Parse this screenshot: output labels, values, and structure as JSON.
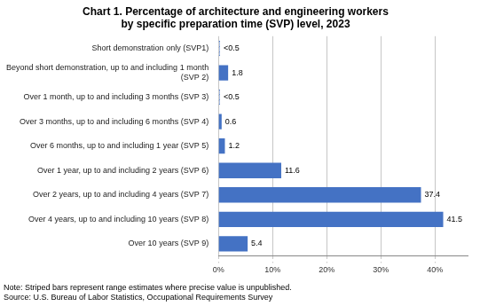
{
  "chart_data": {
    "type": "bar",
    "orientation": "horizontal",
    "title": "Chart 1. Percentage of architecture and engineering workers\nby specific preparation time (SVP) level, 2023",
    "categories": [
      "Short demonstration only (SVP1)",
      "Beyond short demonstration, up to and including 1 month\n(SVP 2)",
      "Over 1 month, up to and including 3 months (SVP 3)",
      "Over 3 months, up to and including 6 months (SVP 4)",
      "Over 6 months, up to and including 1 year (SVP 5)",
      "Over 1 year, up to and including 2 years (SVP 6)",
      "Over 2 years, up to and including 4 years (SVP 7)",
      "Over 4 years, up to and including 10 years (SVP 8)",
      "Over 10 years (SVP 9)"
    ],
    "values": [
      0.3,
      1.8,
      0.3,
      0.6,
      1.2,
      11.6,
      37.4,
      41.5,
      5.4
    ],
    "value_labels": [
      "<0.5",
      "1.8",
      "<0.5",
      "0.6",
      "1.2",
      "11.6",
      "37.4",
      "41.5",
      "5.4"
    ],
    "data_labels": true,
    "color": "#4472C4",
    "colors": [
      "#FFFFFF",
      "#4472C4",
      "#FFFFFF",
      "#4472C4",
      "#4472C4",
      "#4472C4",
      "#4472C4",
      "#4472C4",
      "#4472C4"
    ],
    "xlim": [
      0,
      46
    ],
    "xticks": [
      {
        "value": 0,
        "label": "0%"
      },
      {
        "value": 10,
        "label": "10%"
      },
      {
        "value": 20,
        "label": "20%"
      },
      {
        "value": 30,
        "label": "30%"
      },
      {
        "value": 40,
        "label": "40%"
      }
    ],
    "grid": true,
    "annotations": [
      "Note: Striped bars represent range estimates where precise value is unpublished.",
      "Source: U.S. Bureau of Labor Statistics, Occupational Requirements Survey"
    ]
  }
}
